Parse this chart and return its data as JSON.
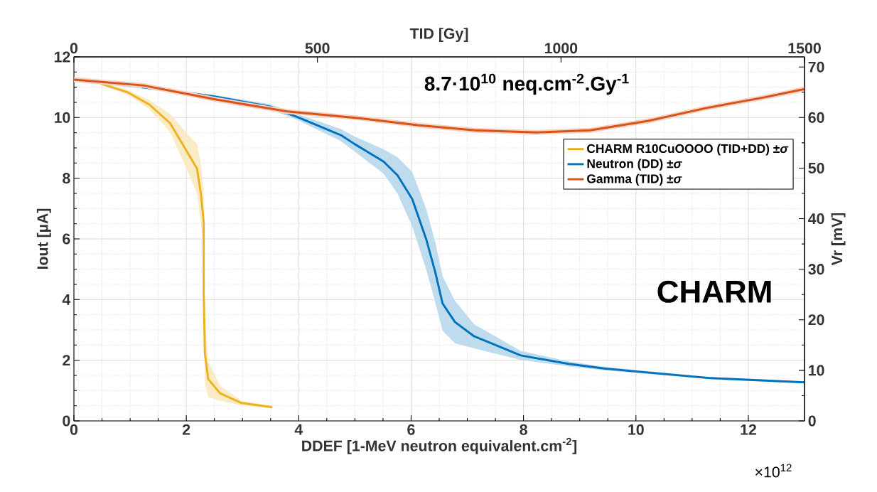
{
  "chart_data": {
    "type": "line",
    "xlabel": "DDEF [1-MeV neutron equivalent.cm$^{-2}$]",
    "ylabel": "Iout [µA]",
    "x2label": "TID [Gy]",
    "y2label": "Vr [mV]",
    "xlim": [
      0,
      13
    ],
    "xticks": [
      0,
      2,
      4,
      6,
      8,
      10,
      12
    ],
    "ylim": [
      0,
      12
    ],
    "yticks": [
      0,
      2,
      4,
      6,
      8,
      10,
      12
    ],
    "x2lim": [
      0,
      1500
    ],
    "x2ticks": [
      0,
      500,
      1000,
      1500
    ],
    "y2lim": [
      0,
      72
    ],
    "y2ticks": [
      0,
      10,
      20,
      30,
      40,
      50,
      60,
      70
    ],
    "grid": true,
    "legend": "top right",
    "annotations": [
      "8.7·10$^{10}$ neq.cm$^{-2}$.Gy$^{-1}$",
      "CHARM",
      "×10$^{12}$"
    ],
    "series": [
      {
        "name": "CHARM R10CuOOOO (TID+DD) ±*σ*",
        "color": "#edb120",
        "x": [
          0,
          0.46,
          0.96,
          1.34,
          1.71,
          2.01,
          2.19,
          2.26,
          2.31,
          2.31,
          2.33,
          2.39,
          2.6,
          2.98,
          3.53
        ],
        "values": [
          null,
          11.13,
          10.83,
          10.43,
          9.82,
          8.88,
          8.32,
          7.48,
          6.54,
          4.2,
          2.23,
          1.38,
          0.91,
          0.59,
          0.45
        ],
        "upper": [
          11.28,
          11.18,
          10.91,
          10.58,
          10.12,
          9.48,
          9.12,
          8.48,
          7.54,
          5.2,
          3.23,
          1.98,
          1.16,
          0.67,
          0.49
        ],
        "lower": [
          11.18,
          11.08,
          10.75,
          10.28,
          9.52,
          8.28,
          7.52,
          6.48,
          5.54,
          3.2,
          1.23,
          0.78,
          0.66,
          0.51,
          0.41
        ]
      },
      {
        "name": "Neutron (DD) ±*σ*",
        "color": "#0072bd",
        "x": [
          0,
          1.21,
          2.48,
          3.49,
          4.0,
          4.75,
          5.0,
          5.51,
          5.76,
          6.02,
          6.27,
          6.43,
          6.56,
          6.78,
          7.12,
          7.95,
          8.8,
          9.43,
          10.06,
          11.33,
          13
        ],
        "values": [
          null,
          11.0,
          10.7,
          10.36,
          10.0,
          9.42,
          9.12,
          8.55,
          8.09,
          7.31,
          5.98,
          4.9,
          3.87,
          3.26,
          2.79,
          2.16,
          1.88,
          1.73,
          1.62,
          1.41,
          1.27
        ],
        "upper": [
          11.3,
          11.05,
          10.75,
          10.44,
          10.1,
          9.62,
          9.37,
          8.95,
          8.69,
          8.21,
          6.98,
          5.9,
          4.77,
          3.96,
          3.19,
          2.31,
          1.96,
          1.79,
          1.67,
          1.45,
          1.3
        ],
        "lower": [
          11.2,
          10.95,
          10.65,
          10.28,
          9.9,
          9.22,
          8.87,
          8.15,
          7.49,
          6.41,
          4.98,
          3.9,
          2.97,
          2.56,
          2.39,
          2.01,
          1.8,
          1.67,
          1.57,
          1.37,
          1.24
        ]
      },
      {
        "name": "Gamma (TID) ±*σ*",
        "color": "#d95319",
        "axis": "x2",
        "x": [
          0,
          142,
          290,
          438,
          586,
          705,
          823,
          949,
          1060,
          1179,
          1297,
          1416,
          1500
        ],
        "values": [
          11.25,
          11.06,
          10.6,
          10.2,
          9.98,
          9.75,
          9.58,
          9.51,
          9.58,
          9.89,
          10.31,
          10.66,
          10.94
        ],
        "upper": [
          11.33,
          11.14,
          10.68,
          10.28,
          10.06,
          9.83,
          9.66,
          9.59,
          9.66,
          9.97,
          10.39,
          10.74,
          11.02
        ],
        "lower": [
          11.17,
          10.98,
          10.52,
          10.12,
          9.9,
          9.67,
          9.5,
          9.43,
          9.5,
          9.81,
          10.23,
          10.58,
          10.86
        ]
      }
    ]
  }
}
